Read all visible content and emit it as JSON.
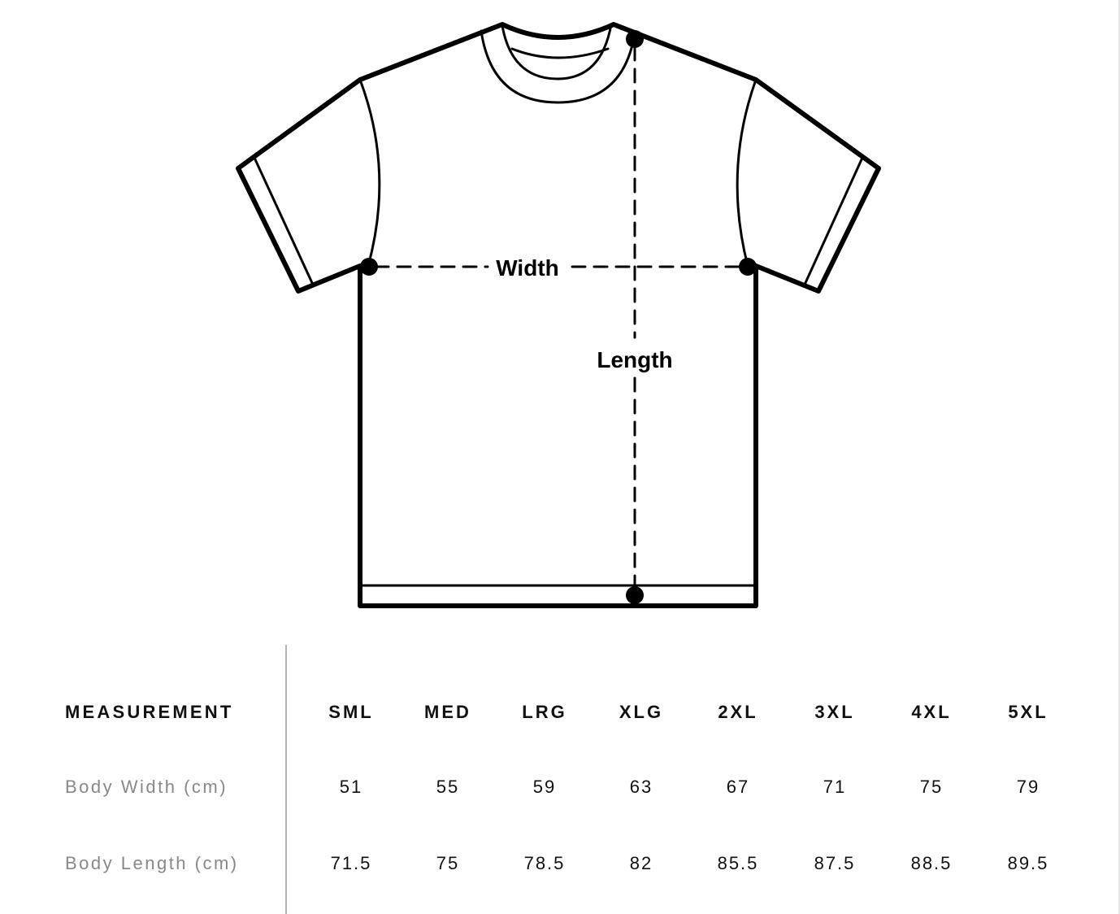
{
  "diagram": {
    "width_label": "Width",
    "length_label": "Length"
  },
  "table": {
    "header_label": "MEASUREMENT",
    "sizes": [
      "SML",
      "MED",
      "LRG",
      "XLG",
      "2XL",
      "3XL",
      "4XL",
      "5XL"
    ],
    "rows": [
      {
        "label": "Body Width (cm)",
        "values": [
          "51",
          "55",
          "59",
          "63",
          "67",
          "71",
          "75",
          "79"
        ]
      },
      {
        "label": "Body Length (cm)",
        "values": [
          "71.5",
          "75",
          "78.5",
          "82",
          "85.5",
          "87.5",
          "88.5",
          "89.5"
        ]
      }
    ]
  },
  "colors": {
    "line": "#000000",
    "label_gray": "#888888",
    "divider": "#b3b3b3"
  }
}
